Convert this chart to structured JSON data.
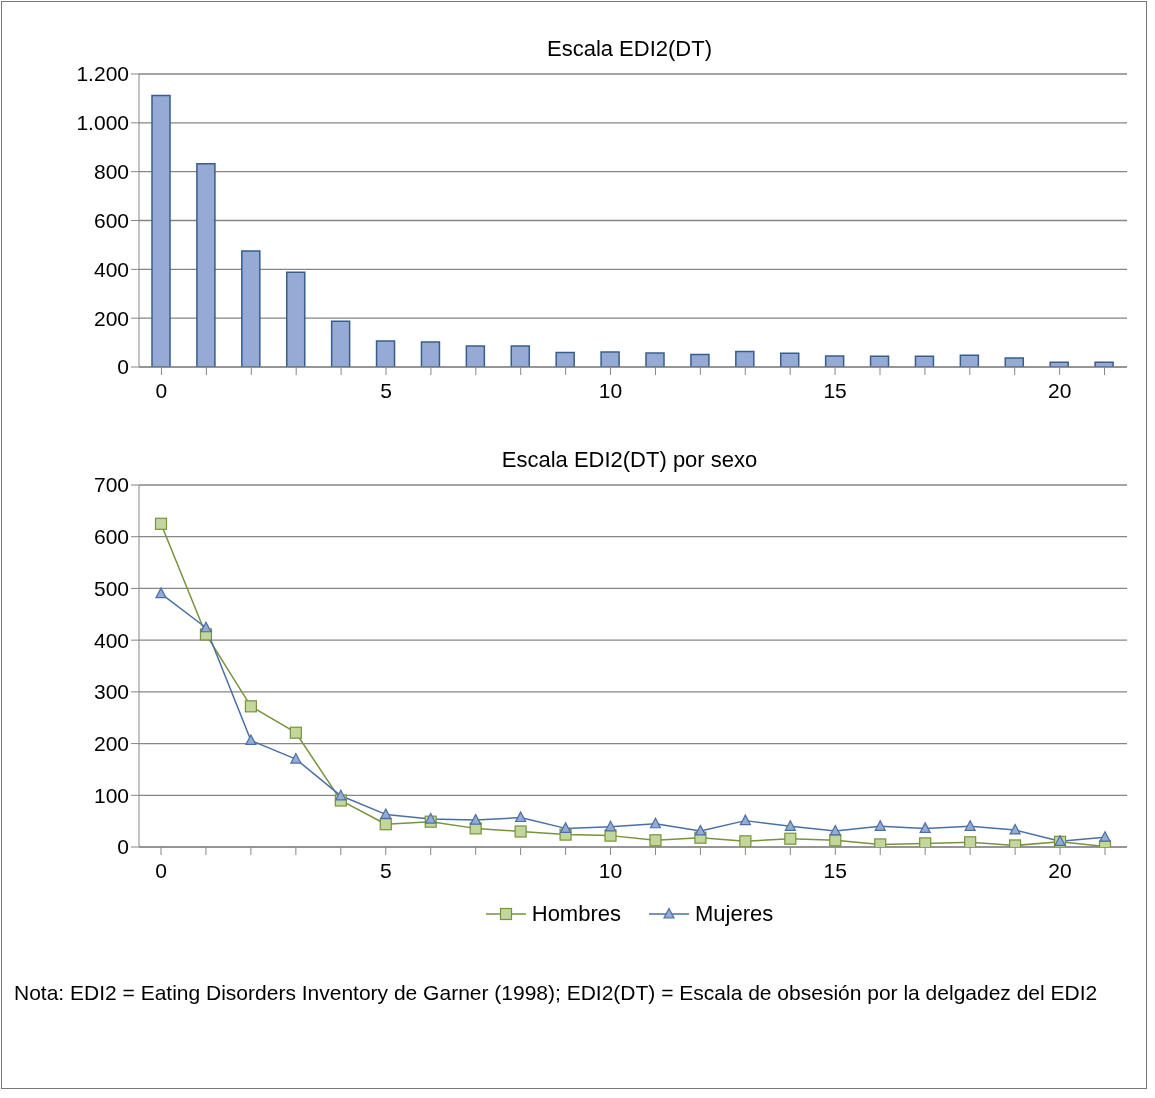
{
  "chart_data": [
    {
      "type": "bar",
      "title": "Escala EDI2(DT)",
      "categories": [
        "0",
        null,
        null,
        null,
        null,
        "5",
        null,
        null,
        null,
        null,
        "10",
        null,
        null,
        null,
        null,
        "15",
        null,
        null,
        null,
        null,
        "20",
        null
      ],
      "values": [
        1112,
        832,
        475,
        388,
        187,
        106,
        102,
        86,
        86,
        59,
        61,
        57,
        51,
        63,
        56,
        45,
        44,
        44,
        48,
        37,
        19,
        19
      ],
      "color": "#95abd5",
      "ylim": [
        0,
        1200
      ],
      "yticks": [
        {
          "value": 0,
          "label": "0"
        },
        {
          "value": 200,
          "label": "200"
        },
        {
          "value": 400,
          "label": "400"
        },
        {
          "value": 600,
          "label": "600"
        },
        {
          "value": 800,
          "label": "800"
        },
        {
          "value": 1000,
          "label": "1.000"
        },
        {
          "value": 1200,
          "label": "1.200"
        }
      ],
      "grid": "y"
    },
    {
      "type": "line",
      "title": "Escala EDI2(DT) por sexo",
      "categories": [
        "0",
        null,
        null,
        null,
        null,
        "5",
        null,
        null,
        null,
        null,
        "10",
        null,
        null,
        null,
        null,
        "15",
        null,
        null,
        null,
        null,
        "20",
        null
      ],
      "series": [
        {
          "name": "Hombres",
          "color": "#77933c",
          "marker": "square",
          "values": [
            625,
            411,
            272,
            221,
            90,
            44,
            49,
            36,
            30,
            24,
            22,
            13,
            18,
            11,
            16,
            13,
            5,
            7,
            9,
            3,
            10,
            1
          ]
        },
        {
          "name": "Mujeres",
          "color": "#4a6fa5",
          "marker": "triangle",
          "values": [
            490,
            424,
            206,
            170,
            99,
            63,
            54,
            52,
            57,
            36,
            39,
            45,
            31,
            51,
            40,
            31,
            40,
            36,
            40,
            33,
            11,
            19
          ]
        }
      ],
      "ylim": [
        0,
        700
      ],
      "yticks": [
        0,
        100,
        200,
        300,
        400,
        500,
        600,
        700
      ],
      "grid": "y",
      "legend": "bottom",
      "annotations": [
        "Nota: EDI2 = Eating Disorders Inventory de Garner (1998); EDI2(DT) = Escala de obsesión por la delgadez del EDI2"
      ]
    }
  ]
}
